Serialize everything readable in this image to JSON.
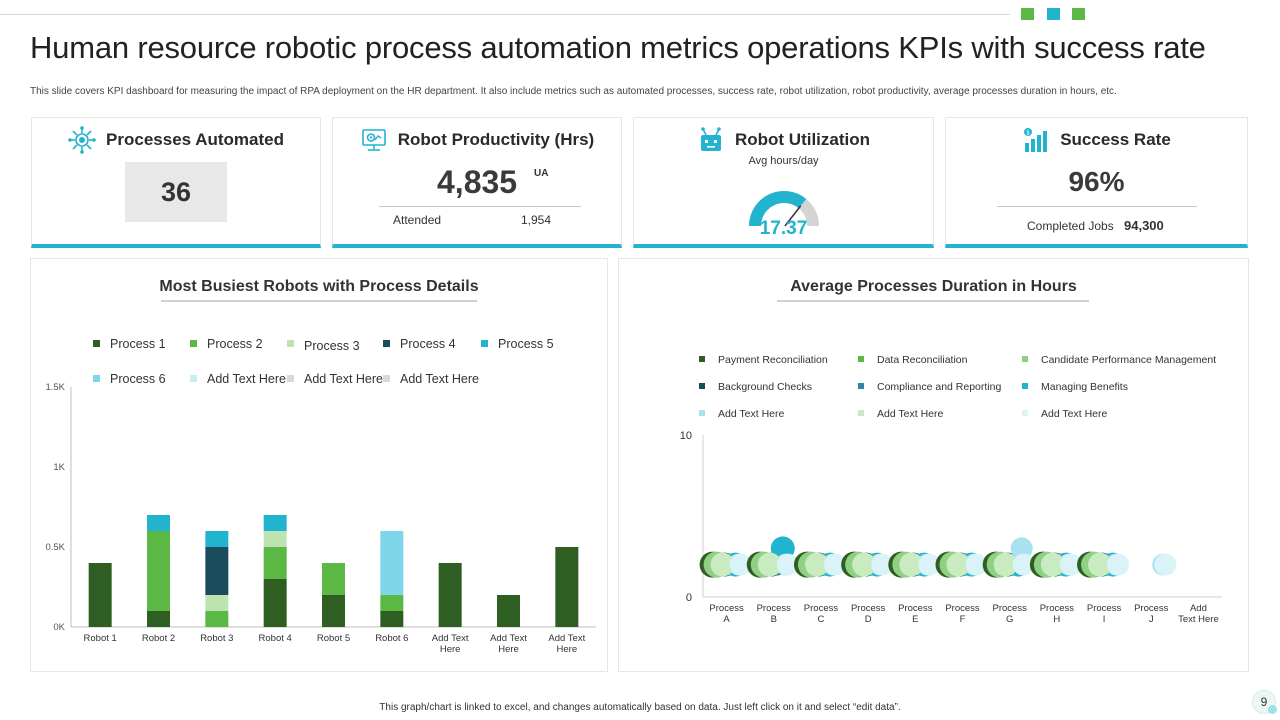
{
  "header": {
    "title": "Human resource robotic process automation metrics operations KPIs with success rate",
    "subtitle": "This slide covers KPI dashboard for measuring the impact of RPA deployment on the HR department. It also include metrics such as automated processes, success rate, robot utilization, robot productivity, average processes duration in hours, etc."
  },
  "colors": {
    "accent": "#22b3cf",
    "dark_green": "#2f5e22",
    "green": "#5cb845",
    "light_green": "#bde3b0",
    "navy": "#1b4c5e",
    "teal": "#22b3cf",
    "light_blue": "#7fd6ea",
    "deco": [
      "#5cb845",
      "#22b3cf",
      "#5cb845"
    ]
  },
  "kpis": {
    "processes_automated": {
      "title": "Processes Automated",
      "value": "36",
      "icon": "gear-network-icon"
    },
    "robot_productivity": {
      "title": "Robot Productivity (Hrs)",
      "value": "4,835",
      "unattended_tag": "UA",
      "attended_label": "Attended",
      "attended_value": "1,954",
      "icon": "monitor-gear-icon"
    },
    "robot_utilization": {
      "title": "Robot Utilization",
      "caption": "Avg hours/day",
      "value": "17.37",
      "gauge_fraction": 0.72,
      "icon": "robot-icon"
    },
    "success_rate": {
      "title": "Success Rate",
      "value": "96%",
      "completed_label": "Completed Jobs",
      "completed_value": "94,300",
      "icon": "bar-growth-icon"
    }
  },
  "footer": {
    "note": "This graph/chart is linked to excel, and changes automatically based on data. Just left click on it and select “edit data”.",
    "page_number": "9"
  },
  "chart_data": [
    {
      "type": "bar",
      "stacked": true,
      "title": "Most Busiest Robots with Process Details",
      "categories": [
        "Robot 1",
        "Robot 2",
        "Robot 3",
        "Robot 4",
        "Robot 5",
        "Robot 6",
        "Add Text Here",
        "Add Text Here",
        "Add Text Here"
      ],
      "ylim": [
        0,
        1500
      ],
      "yticks": [
        0,
        500,
        1000,
        1500
      ],
      "ytick_labels": [
        "0K",
        "0.5K",
        "1K",
        "1.5K"
      ],
      "legend": [
        "Process 1",
        "Process 2",
        "Process 3",
        "Process 4",
        "Process 5",
        "Process 6",
        "Add Text Here",
        "Add Text Here",
        "Add Text Here"
      ],
      "series": [
        {
          "name": "Process 1",
          "color": "#2f5e22",
          "values": [
            400,
            100,
            0,
            300,
            200,
            100,
            400,
            200,
            500
          ]
        },
        {
          "name": "Process 2",
          "color": "#5cb845",
          "values": [
            0,
            500,
            100,
            200,
            200,
            100,
            0,
            0,
            0
          ]
        },
        {
          "name": "Process 3",
          "color": "#bde3b0",
          "values": [
            0,
            0,
            100,
            100,
            0,
            0,
            0,
            0,
            0
          ]
        },
        {
          "name": "Process 4",
          "color": "#1b4c5e",
          "values": [
            0,
            0,
            300,
            0,
            0,
            0,
            0,
            0,
            0
          ]
        },
        {
          "name": "Process 5",
          "color": "#22b3cf",
          "values": [
            0,
            100,
            100,
            100,
            0,
            0,
            0,
            0,
            0
          ]
        },
        {
          "name": "Process 6",
          "color": "#7fd6ea",
          "values": [
            0,
            0,
            0,
            0,
            0,
            400,
            0,
            0,
            0
          ]
        },
        {
          "name": "Add Text Here",
          "color": "#c9ecf5",
          "values": [
            0,
            0,
            0,
            0,
            0,
            0,
            0,
            0,
            0
          ]
        },
        {
          "name": "Add Text Here",
          "color": "#d9d9d9",
          "values": [
            0,
            0,
            0,
            0,
            0,
            0,
            0,
            0,
            0
          ]
        },
        {
          "name": "Add Text Here",
          "color": "#d9d9d9",
          "values": [
            0,
            0,
            0,
            0,
            0,
            0,
            0,
            0,
            0
          ]
        }
      ]
    },
    {
      "type": "scatter",
      "title": "Average Processes Duration in Hours",
      "categories": [
        "Process A",
        "Process B",
        "Process C",
        "Process D",
        "Process E",
        "Process F",
        "Process G",
        "Process H",
        "Process I",
        "Process J",
        "Add Text Here"
      ],
      "ylim": [
        0,
        10
      ],
      "yticks": [
        0,
        10
      ],
      "series": [
        {
          "name": "Payment Reconciliation",
          "color": "#2f5e22",
          "values": [
            2,
            2,
            2,
            2,
            2,
            2,
            2,
            2,
            2,
            0,
            0
          ]
        },
        {
          "name": "Data Reconciliation",
          "color": "#5cb845",
          "values": [
            2,
            2,
            2,
            2,
            2,
            2,
            2,
            2,
            2,
            0,
            0
          ]
        },
        {
          "name": "Candidate Performance Management",
          "color": "#8fd084",
          "values": [
            2,
            2,
            2,
            2,
            2,
            2,
            2,
            2,
            2,
            0,
            0
          ]
        },
        {
          "name": "Background Checks",
          "color": "#1b4c5e",
          "values": [
            2,
            2,
            2,
            2,
            2,
            2,
            2,
            2,
            2,
            0,
            0
          ]
        },
        {
          "name": "Compliance and Reporting",
          "color": "#2e86a4",
          "values": [
            2,
            2,
            2,
            2,
            2,
            2,
            2,
            2,
            2,
            0,
            0
          ]
        },
        {
          "name": "Managing Benefits",
          "color": "#22b3cf",
          "values": [
            2,
            3,
            2,
            2,
            2,
            2,
            2,
            2,
            2,
            0,
            0
          ]
        },
        {
          "name": "Add Text Here",
          "color": "#a8e1ef",
          "values": [
            2,
            2,
            2,
            2,
            2,
            2,
            3,
            2,
            2,
            2,
            0
          ]
        },
        {
          "name": "Add Text Here",
          "color": "#c8ebc0",
          "values": [
            2,
            2,
            2,
            2,
            2,
            2,
            2,
            2,
            2,
            0,
            0
          ]
        },
        {
          "name": "Add Text Here",
          "color": "#d9f3f8",
          "values": [
            2,
            2,
            2,
            2,
            2,
            2,
            2,
            2,
            2,
            2,
            0
          ]
        }
      ]
    }
  ]
}
